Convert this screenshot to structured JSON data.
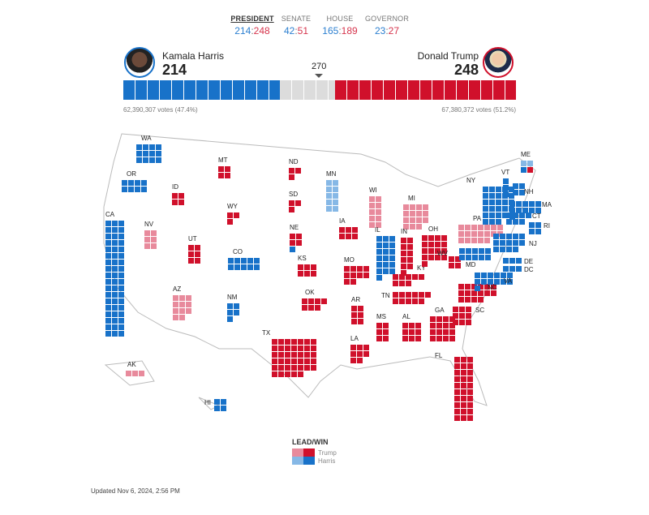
{
  "races": [
    {
      "label": "PRESIDENT",
      "dem": "214",
      "rep": "248",
      "active": true
    },
    {
      "label": "SENATE",
      "dem": "42",
      "rep": "51",
      "active": false
    },
    {
      "label": "HOUSE",
      "dem": "165",
      "rep": "189",
      "active": false
    },
    {
      "label": "GOVERNOR",
      "dem": "23",
      "rep": "27",
      "active": false
    }
  ],
  "harris": {
    "name": "Kamala Harris",
    "ev": "214",
    "votes": "62,390,307 votes (47.4%)"
  },
  "trump": {
    "name": "Donald Trump",
    "ev": "248",
    "votes": "67,380,372 votes (51.2%)"
  },
  "threshold": "270",
  "total_ev": 538,
  "colors": {
    "trump_win": "#d0102b",
    "trump_lead": "#e88a9c",
    "harris_win": "#1872c9",
    "harris_lead": "#86b8e6",
    "undecided": "#dcdcdc"
  },
  "states": [
    {
      "abbr": "WA",
      "ev": 12,
      "status": "harris_win"
    },
    {
      "abbr": "OR",
      "ev": 8,
      "status": "harris_win"
    },
    {
      "abbr": "CA",
      "ev": 54,
      "status": "harris_win"
    },
    {
      "abbr": "NV",
      "ev": 6,
      "status": "trump_lead"
    },
    {
      "abbr": "ID",
      "ev": 4,
      "status": "trump_win"
    },
    {
      "abbr": "MT",
      "ev": 4,
      "status": "trump_win"
    },
    {
      "abbr": "WY",
      "ev": 3,
      "status": "trump_win"
    },
    {
      "abbr": "UT",
      "ev": 6,
      "status": "trump_win"
    },
    {
      "abbr": "AZ",
      "ev": 11,
      "status": "trump_lead"
    },
    {
      "abbr": "CO",
      "ev": 10,
      "status": "harris_win"
    },
    {
      "abbr": "NM",
      "ev": 5,
      "status": "harris_win"
    },
    {
      "abbr": "ND",
      "ev": 3,
      "status": "trump_win"
    },
    {
      "abbr": "SD",
      "ev": 3,
      "status": "trump_win"
    },
    {
      "abbr": "NE",
      "ev": 5,
      "status": "trump_win",
      "split": [
        "trump_win",
        "trump_win",
        "trump_win",
        "trump_win",
        "harris_win"
      ]
    },
    {
      "abbr": "KS",
      "ev": 6,
      "status": "trump_win"
    },
    {
      "abbr": "OK",
      "ev": 7,
      "status": "trump_win"
    },
    {
      "abbr": "TX",
      "ev": 40,
      "status": "trump_win"
    },
    {
      "abbr": "MN",
      "ev": 10,
      "status": "harris_lead"
    },
    {
      "abbr": "IA",
      "ev": 6,
      "status": "trump_win"
    },
    {
      "abbr": "MO",
      "ev": 10,
      "status": "trump_win"
    },
    {
      "abbr": "AR",
      "ev": 6,
      "status": "trump_win"
    },
    {
      "abbr": "LA",
      "ev": 8,
      "status": "trump_win"
    },
    {
      "abbr": "WI",
      "ev": 10,
      "status": "trump_lead"
    },
    {
      "abbr": "IL",
      "ev": 19,
      "status": "harris_win"
    },
    {
      "abbr": "MS",
      "ev": 6,
      "status": "trump_win"
    },
    {
      "abbr": "MI",
      "ev": 15,
      "status": "trump_lead"
    },
    {
      "abbr": "IN",
      "ev": 11,
      "status": "trump_win"
    },
    {
      "abbr": "KY",
      "ev": 8,
      "status": "trump_win"
    },
    {
      "abbr": "TN",
      "ev": 11,
      "status": "trump_win"
    },
    {
      "abbr": "AL",
      "ev": 9,
      "status": "trump_win"
    },
    {
      "abbr": "OH",
      "ev": 17,
      "status": "trump_win"
    },
    {
      "abbr": "GA",
      "ev": 16,
      "status": "trump_win"
    },
    {
      "abbr": "FL",
      "ev": 30,
      "status": "trump_win"
    },
    {
      "abbr": "SC",
      "ev": 9,
      "status": "trump_win"
    },
    {
      "abbr": "NC",
      "ev": 16,
      "status": "trump_win"
    },
    {
      "abbr": "WV",
      "ev": 4,
      "status": "trump_win"
    },
    {
      "abbr": "VA",
      "ev": 13,
      "status": "harris_win"
    },
    {
      "abbr": "PA",
      "ev": 19,
      "status": "trump_lead"
    },
    {
      "abbr": "NY",
      "ev": 28,
      "status": "harris_win"
    },
    {
      "abbr": "VT",
      "ev": 3,
      "status": "harris_win"
    },
    {
      "abbr": "NH",
      "ev": 4,
      "status": "harris_win"
    },
    {
      "abbr": "ME",
      "ev": 4,
      "status": "harris_win",
      "split": [
        "harris_lead",
        "harris_lead",
        "harris_win",
        "trump_win"
      ]
    },
    {
      "abbr": "MA",
      "ev": 11,
      "status": "harris_win"
    },
    {
      "abbr": "CT",
      "ev": 7,
      "status": "harris_win"
    },
    {
      "abbr": "RI",
      "ev": 4,
      "status": "harris_win"
    },
    {
      "abbr": "NJ",
      "ev": 14,
      "status": "harris_win"
    },
    {
      "abbr": "DE",
      "ev": 3,
      "status": "harris_win"
    },
    {
      "abbr": "MD",
      "ev": 10,
      "status": "harris_win"
    },
    {
      "abbr": "DC",
      "ev": 3,
      "status": "harris_win"
    },
    {
      "abbr": "AK",
      "ev": 3,
      "status": "trump_lead"
    },
    {
      "abbr": "HI",
      "ev": 4,
      "status": "harris_win"
    }
  ],
  "legend": {
    "title": "LEAD/WIN",
    "trump": "Trump",
    "harris": "Harris"
  },
  "updated": "Updated Nov 6, 2024, 2:56 PM"
}
